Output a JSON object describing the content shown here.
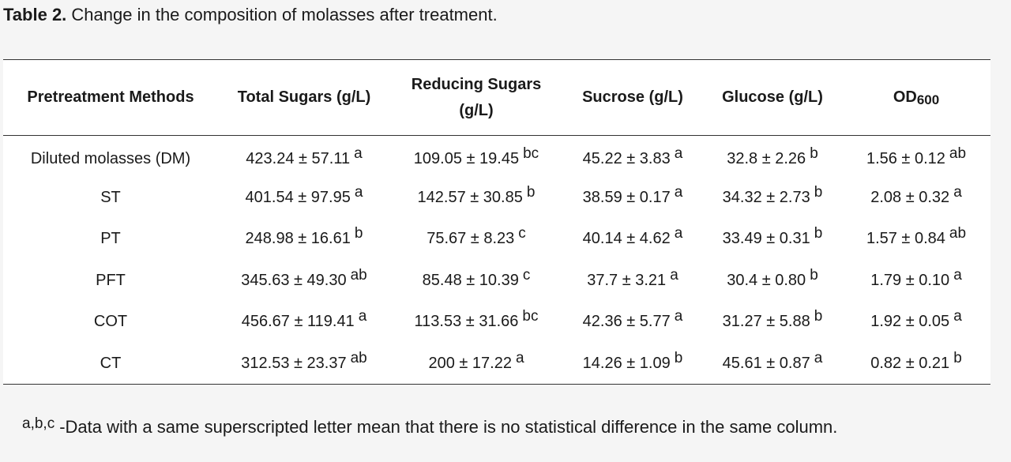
{
  "caption": {
    "label": "Table 2.",
    "text": "Change in the composition of molasses after treatment."
  },
  "table": {
    "headers": [
      {
        "main": "Pretreatment Methods",
        "sub": ""
      },
      {
        "main": "Total Sugars (g/L)",
        "sub": ""
      },
      {
        "main": "Reducing Sugars (g/L)",
        "sub": ""
      },
      {
        "main": "Sucrose (g/L)",
        "sub": ""
      },
      {
        "main": "Glucose (g/L)",
        "sub": ""
      },
      {
        "main": "OD",
        "sub": "600"
      }
    ],
    "rows": [
      {
        "method": "Diluted molasses (DM)",
        "cells": [
          {
            "value": "423.24 ± 57.11",
            "sup": "a"
          },
          {
            "value": "109.05 ± 19.45",
            "sup": "bc"
          },
          {
            "value": "45.22 ± 3.83",
            "sup": "a"
          },
          {
            "value": "32.8 ± 2.26",
            "sup": "b"
          },
          {
            "value": "1.56 ± 0.12",
            "sup": "ab"
          }
        ]
      },
      {
        "method": "ST",
        "cells": [
          {
            "value": "401.54 ± 97.95",
            "sup": "a"
          },
          {
            "value": "142.57 ± 30.85",
            "sup": "b"
          },
          {
            "value": "38.59 ± 0.17",
            "sup": "a"
          },
          {
            "value": "34.32 ± 2.73",
            "sup": "b"
          },
          {
            "value": "2.08 ± 0.32",
            "sup": "a"
          }
        ]
      },
      {
        "method": "PT",
        "cells": [
          {
            "value": "248.98 ± 16.61",
            "sup": "b"
          },
          {
            "value": "75.67 ± 8.23",
            "sup": "c"
          },
          {
            "value": "40.14 ± 4.62",
            "sup": "a"
          },
          {
            "value": "33.49 ± 0.31",
            "sup": "b"
          },
          {
            "value": "1.57 ± 0.84",
            "sup": "ab"
          }
        ]
      },
      {
        "method": "PFT",
        "cells": [
          {
            "value": "345.63 ± 49.30",
            "sup": "ab"
          },
          {
            "value": "85.48 ± 10.39",
            "sup": "c"
          },
          {
            "value": "37.7 ± 3.21",
            "sup": "a"
          },
          {
            "value": "30.4 ± 0.80",
            "sup": "b"
          },
          {
            "value": "1.79 ± 0.10",
            "sup": "a"
          }
        ]
      },
      {
        "method": "COT",
        "cells": [
          {
            "value": "456.67 ± 119.41",
            "sup": "a"
          },
          {
            "value": "113.53 ± 31.66",
            "sup": "bc"
          },
          {
            "value": "42.36 ± 5.77",
            "sup": "a"
          },
          {
            "value": "31.27 ± 5.88",
            "sup": "b"
          },
          {
            "value": "1.92 ± 0.05",
            "sup": "a"
          }
        ]
      },
      {
        "method": "CT",
        "cells": [
          {
            "value": "312.53 ± 23.37",
            "sup": "ab"
          },
          {
            "value": "200 ± 17.22",
            "sup": "a"
          },
          {
            "value": "14.26 ± 1.09",
            "sup": "b"
          },
          {
            "value": "45.61 ± 0.87",
            "sup": "a"
          },
          {
            "value": "0.82 ± 0.21",
            "sup": "b"
          }
        ]
      }
    ]
  },
  "footnote": {
    "sup": "a,b,c",
    "text": "-Data with a same superscripted letter mean that there is no statistical difference in the same column."
  }
}
